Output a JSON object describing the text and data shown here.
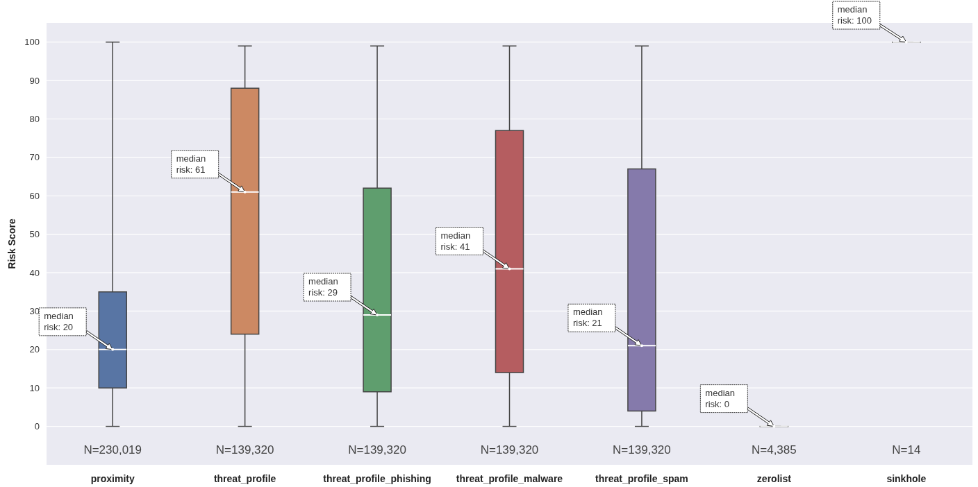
{
  "chart_data": {
    "type": "box",
    "ylabel": "Risk Score",
    "categories": [
      "proximity",
      "threat_profile",
      "threat_profile_phishing",
      "threat_profile_malware",
      "threat_profile_spam",
      "zerolist",
      "sinkhole"
    ],
    "colors": [
      "#5875a4",
      "#cc8963",
      "#5f9e6e",
      "#b55d60",
      "#857aab",
      "#8d7866",
      "#d095bf"
    ],
    "boxes": [
      {
        "low": 0,
        "q1": 10,
        "median": 20,
        "q3": 35,
        "high": 100
      },
      {
        "low": 0,
        "q1": 24,
        "median": 61,
        "q3": 88,
        "high": 99
      },
      {
        "low": 0,
        "q1": 9,
        "median": 29,
        "q3": 62,
        "high": 99
      },
      {
        "low": 0,
        "q1": 14,
        "median": 41,
        "q3": 77,
        "high": 99
      },
      {
        "low": 0,
        "q1": 4,
        "median": 21,
        "q3": 67,
        "high": 99
      },
      {
        "low": 0,
        "q1": 0,
        "median": 0,
        "q3": 0,
        "high": 0
      },
      {
        "low": 100,
        "q1": 100,
        "median": 100,
        "q3": 100,
        "high": 100
      }
    ],
    "ylim": [
      -10,
      105
    ],
    "yticks": [
      0,
      10,
      20,
      30,
      40,
      50,
      60,
      70,
      80,
      90,
      100
    ],
    "grid": "y",
    "annotations": [
      "median\nrisk: 20",
      "median\nrisk: 61",
      "median\nrisk: 29",
      "median\nrisk: 41",
      "median\nrisk: 21",
      "median\nrisk: 0",
      "median\nrisk: 100",
      "N=230,019",
      "N=139,320",
      "N=139,320",
      "N=139,320",
      "N=139,320",
      "N=4,385",
      "N=14"
    ]
  }
}
